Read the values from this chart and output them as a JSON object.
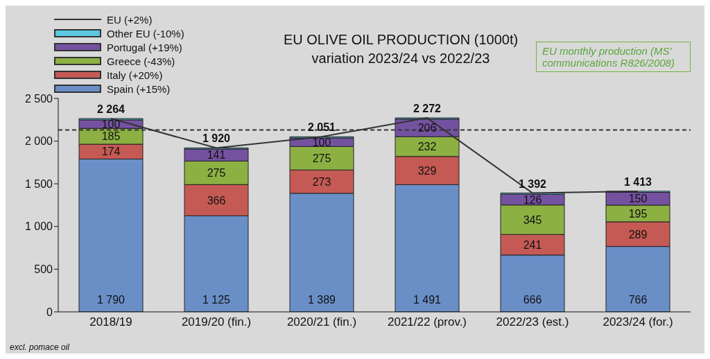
{
  "chart_data": {
    "type": "bar",
    "title": "EU OLIVE OIL PRODUCTION (1000t)",
    "subtitle": "variation 2023/24 vs 2022/23",
    "categories": [
      "2018/19",
      "2019/20 (fin.)",
      "2020/21 (fin.)",
      "2021/22 (prov.)",
      "2022/23 (est.)",
      "2023/24 (for.)"
    ],
    "stacked": true,
    "series": [
      {
        "name": "Spain (+15%)",
        "color": "#6a8fc7",
        "values": [
          1790,
          1125,
          1389,
          1491,
          666,
          766
        ],
        "value_labels": [
          "1 790",
          "1 125",
          "1 389",
          "1 491",
          "666",
          "766"
        ]
      },
      {
        "name": "Italy (+20%)",
        "color": "#c55a55",
        "values": [
          174,
          366,
          273,
          329,
          241,
          289
        ],
        "value_labels": [
          "174",
          "366",
          "273",
          "329",
          "241",
          "289"
        ]
      },
      {
        "name": "Greece (-43%)",
        "color": "#8db043",
        "values": [
          185,
          275,
          275,
          232,
          345,
          195
        ],
        "value_labels": [
          "185",
          "275",
          "275",
          "232",
          "345",
          "195"
        ]
      },
      {
        "name": "Portugal (+19%)",
        "color": "#7452a0",
        "values": [
          100,
          141,
          100,
          206,
          126,
          150
        ],
        "value_labels": [
          "100",
          "141",
          "100",
          "206",
          "126",
          "150"
        ]
      },
      {
        "name": "Other EU (-10%)",
        "color": "#5bc8e0",
        "values": [
          15,
          13,
          14,
          14,
          14,
          13
        ]
      },
      {
        "name": "EU (+2%)",
        "type": "line",
        "color": "#333333",
        "values": [
          2264,
          1920,
          2051,
          2272,
          1392,
          1413
        ]
      }
    ],
    "totals": [
      "2 264",
      "1 920",
      "2 051",
      "2 272",
      "1 392",
      "1 413"
    ],
    "ylim": [
      0,
      2500
    ],
    "yticks": [
      0,
      {
        "value": 500,
        "label": "500"
      },
      {
        "value": 1000,
        "label": "1 000"
      },
      {
        "value": 1500,
        "label": "1 500"
      },
      {
        "value": 2000,
        "label": "2 000"
      },
      {
        "value": 2500,
        "label": "2 500"
      }
    ],
    "ref_lines": [
      {
        "axis": "y",
        "value": 2130,
        "color": "#333333",
        "line_style": "dashed"
      }
    ],
    "legend": "top left",
    "annotations": [
      "EU monthly production (MS' communications R826/2008)",
      "excl. pomace oil"
    ]
  }
}
